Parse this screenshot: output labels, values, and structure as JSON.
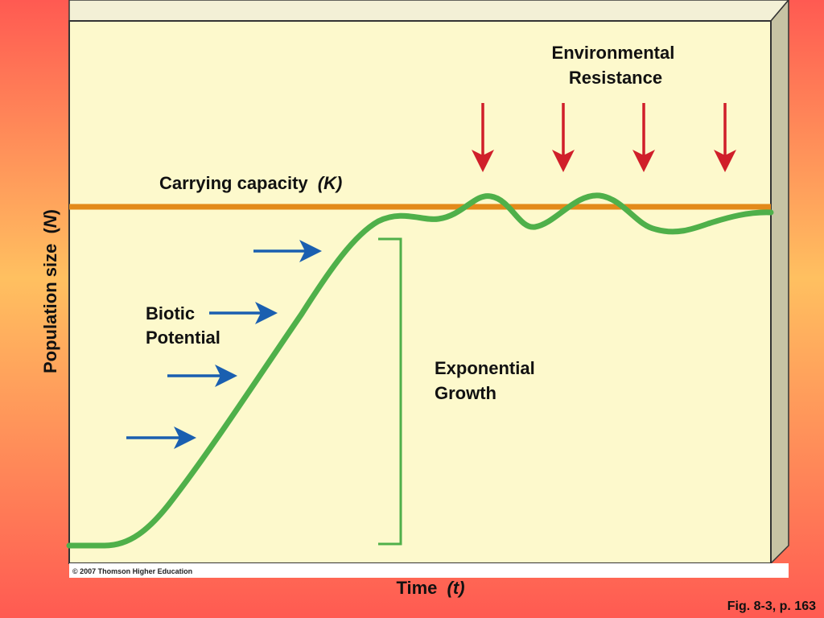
{
  "labels": {
    "environmental_resistance_line1": "Environmental",
    "environmental_resistance_line2": "Resistance",
    "carrying_capacity": "Carrying capacity",
    "carrying_capacity_symbol": "(K)",
    "biotic_line1": "Biotic",
    "biotic_line2": "Potential",
    "exponential_line1": "Exponential",
    "exponential_line2": "Growth",
    "y_axis_text": "Population size",
    "y_axis_symbol_open": "(",
    "y_axis_symbol": "N",
    "y_axis_symbol_close": ")",
    "x_axis_text": "Time",
    "x_axis_symbol": "(t)",
    "copyright": "© 2007 Thomson Higher Education",
    "figure_ref": "Fig. 8-3, p. 163"
  },
  "colors": {
    "background_gradient_top": "#ff5a52",
    "background_gradient_mid": "#ffc060",
    "panel_fill": "#fdf9cc",
    "panel_side": "#c7c3a4",
    "panel_top": "#f3f0d6",
    "carrying_capacity_line": "#e38a1a",
    "growth_curve": "#4fb04a",
    "bracket": "#4fb04a",
    "biotic_arrows": "#1a5fb0",
    "resistance_arrows": "#d01f2a"
  }
}
